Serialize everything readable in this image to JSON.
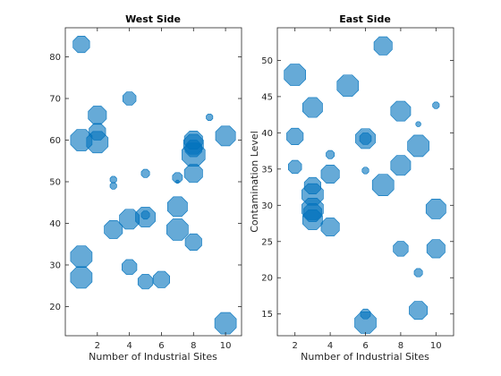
{
  "chart_data": [
    {
      "type": "scatter",
      "title": "West Side",
      "xlabel": "Number of Industrial Sites",
      "ylabel": "",
      "xlim": [
        0,
        11
      ],
      "ylim": [
        13,
        87
      ],
      "xticks": [
        2,
        4,
        6,
        8,
        10
      ],
      "yticks": [
        20,
        30,
        40,
        50,
        60,
        70,
        80
      ],
      "marker": "octagon",
      "color": "#0072BD",
      "fill_alpha": 0.6,
      "grid": false,
      "points": [
        {
          "x": 1,
          "y": 83,
          "size": 10
        },
        {
          "x": 1,
          "y": 60,
          "size": 13
        },
        {
          "x": 1,
          "y": 32,
          "size": 13
        },
        {
          "x": 1,
          "y": 27,
          "size": 13
        },
        {
          "x": 2,
          "y": 66,
          "size": 11
        },
        {
          "x": 2,
          "y": 62,
          "size": 10
        },
        {
          "x": 2,
          "y": 59.5,
          "size": 13
        },
        {
          "x": 3,
          "y": 50.5,
          "size": 4
        },
        {
          "x": 3,
          "y": 49,
          "size": 4
        },
        {
          "x": 3,
          "y": 38.5,
          "size": 11
        },
        {
          "x": 4,
          "y": 70,
          "size": 8
        },
        {
          "x": 4,
          "y": 41,
          "size": 12
        },
        {
          "x": 4,
          "y": 29.5,
          "size": 9
        },
        {
          "x": 5,
          "y": 52,
          "size": 5
        },
        {
          "x": 5,
          "y": 42,
          "size": 5
        },
        {
          "x": 5,
          "y": 41.5,
          "size": 12
        },
        {
          "x": 5,
          "y": 26,
          "size": 9
        },
        {
          "x": 6,
          "y": 26.5,
          "size": 10
        },
        {
          "x": 7,
          "y": 51,
          "size": 6
        },
        {
          "x": 7,
          "y": 50,
          "size": 2
        },
        {
          "x": 7,
          "y": 44,
          "size": 12
        },
        {
          "x": 7,
          "y": 38.5,
          "size": 13
        },
        {
          "x": 8,
          "y": 60,
          "size": 11
        },
        {
          "x": 8,
          "y": 59,
          "size": 12
        },
        {
          "x": 8,
          "y": 58,
          "size": 10
        },
        {
          "x": 8,
          "y": 56.5,
          "size": 14
        },
        {
          "x": 8,
          "y": 52,
          "size": 11
        },
        {
          "x": 8,
          "y": 35.5,
          "size": 10
        },
        {
          "x": 9,
          "y": 65.5,
          "size": 4
        },
        {
          "x": 10,
          "y": 61,
          "size": 12
        },
        {
          "x": 10,
          "y": 16,
          "size": 13
        }
      ]
    },
    {
      "type": "scatter",
      "title": "East Side",
      "xlabel": "Number of Industrial Sites",
      "ylabel": "Contamination Level",
      "xlim": [
        1,
        11
      ],
      "ylim": [
        12,
        54.5
      ],
      "xticks": [
        2,
        4,
        6,
        8,
        10
      ],
      "yticks": [
        15,
        20,
        25,
        30,
        35,
        40,
        45,
        50
      ],
      "marker": "octagon",
      "color": "#0072BD",
      "fill_alpha": 0.6,
      "grid": false,
      "points": [
        {
          "x": 2,
          "y": 48,
          "size": 13
        },
        {
          "x": 2,
          "y": 39.5,
          "size": 10
        },
        {
          "x": 2,
          "y": 35.3,
          "size": 8
        },
        {
          "x": 3,
          "y": 43.5,
          "size": 12
        },
        {
          "x": 3,
          "y": 32.7,
          "size": 10
        },
        {
          "x": 3,
          "y": 31.5,
          "size": 13
        },
        {
          "x": 3,
          "y": 29.5,
          "size": 13
        },
        {
          "x": 3,
          "y": 29,
          "size": 11
        },
        {
          "x": 3,
          "y": 28,
          "size": 12
        },
        {
          "x": 4,
          "y": 37,
          "size": 5
        },
        {
          "x": 4,
          "y": 34.3,
          "size": 11
        },
        {
          "x": 4,
          "y": 27,
          "size": 11
        },
        {
          "x": 5,
          "y": 46.5,
          "size": 13
        },
        {
          "x": 6,
          "y": 39.2,
          "size": 12
        },
        {
          "x": 6,
          "y": 39.2,
          "size": 7
        },
        {
          "x": 6,
          "y": 34.8,
          "size": 4
        },
        {
          "x": 6,
          "y": 15,
          "size": 6
        },
        {
          "x": 6,
          "y": 13.8,
          "size": 13
        },
        {
          "x": 7,
          "y": 52,
          "size": 11
        },
        {
          "x": 7,
          "y": 32.8,
          "size": 13
        },
        {
          "x": 8,
          "y": 43,
          "size": 12
        },
        {
          "x": 8,
          "y": 35.5,
          "size": 12
        },
        {
          "x": 8,
          "y": 24,
          "size": 9
        },
        {
          "x": 9,
          "y": 41.2,
          "size": 3
        },
        {
          "x": 9,
          "y": 38.2,
          "size": 13
        },
        {
          "x": 9,
          "y": 20.7,
          "size": 5
        },
        {
          "x": 9,
          "y": 15.5,
          "size": 11
        },
        {
          "x": 10,
          "y": 43.8,
          "size": 4
        },
        {
          "x": 10,
          "y": 29.5,
          "size": 12
        },
        {
          "x": 10,
          "y": 24,
          "size": 11
        }
      ]
    }
  ]
}
